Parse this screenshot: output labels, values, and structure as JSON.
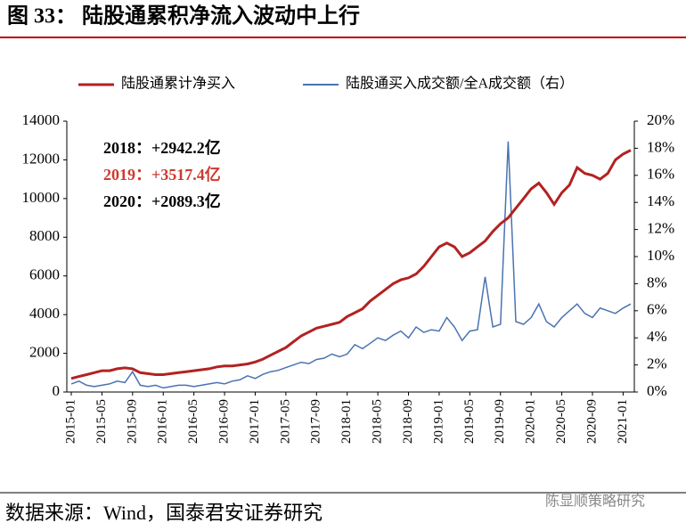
{
  "figure_title": "图 33：   陆股通累积净流入波动中上行",
  "source": "数据来源：Wind，国泰君安证券研究",
  "watermark": "陈显顺策略研究",
  "chart_data": {
    "type": "line",
    "x": [
      "2015-01",
      "2015-02",
      "2015-03",
      "2015-04",
      "2015-05",
      "2015-06",
      "2015-07",
      "2015-08",
      "2015-09",
      "2015-10",
      "2015-11",
      "2015-12",
      "2016-01",
      "2016-02",
      "2016-03",
      "2016-04",
      "2016-05",
      "2016-06",
      "2016-07",
      "2016-08",
      "2016-09",
      "2016-10",
      "2016-11",
      "2016-12",
      "2017-01",
      "2017-02",
      "2017-03",
      "2017-04",
      "2017-05",
      "2017-06",
      "2017-07",
      "2017-08",
      "2017-09",
      "2017-10",
      "2017-11",
      "2017-12",
      "2018-01",
      "2018-02",
      "2018-03",
      "2018-04",
      "2018-05",
      "2018-06",
      "2018-07",
      "2018-08",
      "2018-09",
      "2018-10",
      "2018-11",
      "2018-12",
      "2019-01",
      "2019-02",
      "2019-03",
      "2019-04",
      "2019-05",
      "2019-06",
      "2019-07",
      "2019-08",
      "2019-09",
      "2019-10",
      "2019-11",
      "2019-12",
      "2020-01",
      "2020-02",
      "2020-03",
      "2020-04",
      "2020-05",
      "2020-06",
      "2020-07",
      "2020-08",
      "2020-09",
      "2020-10",
      "2020-11",
      "2020-12",
      "2021-01",
      "2021-02"
    ],
    "xticks": [
      "2015-01",
      "2015-05",
      "2015-09",
      "2016-01",
      "2016-05",
      "2016-09",
      "2017-01",
      "2017-05",
      "2017-09",
      "2018-01",
      "2018-05",
      "2018-09",
      "2019-01",
      "2019-05",
      "2019-09",
      "2020-01",
      "2020-05",
      "2020-09",
      "2021-01"
    ],
    "series": [
      {
        "name": "陆股通累计净买入",
        "color": "#b22222",
        "axis": "y",
        "values": [
          700,
          800,
          900,
          1000,
          1100,
          1100,
          1200,
          1250,
          1200,
          1000,
          950,
          900,
          900,
          950,
          1000,
          1050,
          1100,
          1150,
          1200,
          1300,
          1350,
          1350,
          1400,
          1450,
          1550,
          1700,
          1900,
          2100,
          2300,
          2600,
          2900,
          3100,
          3300,
          3400,
          3500,
          3600,
          3900,
          4100,
          4300,
          4700,
          5000,
          5300,
          5600,
          5800,
          5900,
          6100,
          6500,
          7000,
          7500,
          7700,
          7500,
          7000,
          7200,
          7500,
          7800,
          8300,
          8700,
          9000,
          9500,
          10000,
          10500,
          10800,
          10300,
          9700,
          10300,
          10700,
          11600,
          11300,
          11200,
          11000,
          11300,
          12000,
          12300,
          12500
        ]
      },
      {
        "name": "陆股通买入成交额/全A成交额（右）",
        "color": "#4a73b0",
        "axis": "y2",
        "values": [
          0.6,
          0.8,
          0.5,
          0.4,
          0.5,
          0.6,
          0.8,
          0.7,
          1.5,
          0.5,
          0.4,
          0.5,
          0.3,
          0.4,
          0.5,
          0.5,
          0.4,
          0.5,
          0.6,
          0.7,
          0.6,
          0.8,
          0.9,
          1.2,
          1.0,
          1.3,
          1.5,
          1.6,
          1.8,
          2.0,
          2.2,
          2.1,
          2.4,
          2.5,
          2.8,
          2.6,
          2.8,
          3.5,
          3.2,
          3.6,
          4.0,
          3.8,
          4.2,
          4.5,
          4.0,
          4.8,
          4.4,
          4.6,
          4.5,
          5.5,
          4.8,
          3.8,
          4.5,
          4.6,
          8.5,
          4.8,
          5.0,
          18.5,
          5.2,
          5.0,
          5.5,
          6.5,
          5.2,
          4.8,
          5.5,
          6.0,
          6.5,
          5.8,
          5.5,
          6.2,
          6.0,
          5.8,
          6.2,
          6.5
        ]
      }
    ],
    "ylim": [
      0,
      14000
    ],
    "yticks": [
      0,
      2000,
      4000,
      6000,
      8000,
      10000,
      12000,
      14000
    ],
    "y2lim": [
      0,
      20
    ],
    "y2ticks": [
      {
        "value": 0,
        "label": "0%"
      },
      {
        "value": 2,
        "label": "2%"
      },
      {
        "value": 4,
        "label": "4%"
      },
      {
        "value": 6,
        "label": "6%"
      },
      {
        "value": 8,
        "label": "8%"
      },
      {
        "value": 10,
        "label": "10%"
      },
      {
        "value": 12,
        "label": "12%"
      },
      {
        "value": 14,
        "label": "14%"
      },
      {
        "value": 16,
        "label": "16%"
      },
      {
        "value": 18,
        "label": "18%"
      },
      {
        "value": 20,
        "label": "20%"
      }
    ],
    "grid": false,
    "legend": "top",
    "annotations": [
      {
        "text": "2018：+2942.2亿",
        "color": "#000000"
      },
      {
        "text": "2019：+3517.4亿",
        "color": "#d03a2f"
      },
      {
        "text": "2020：+2089.3亿",
        "color": "#000000"
      }
    ]
  }
}
